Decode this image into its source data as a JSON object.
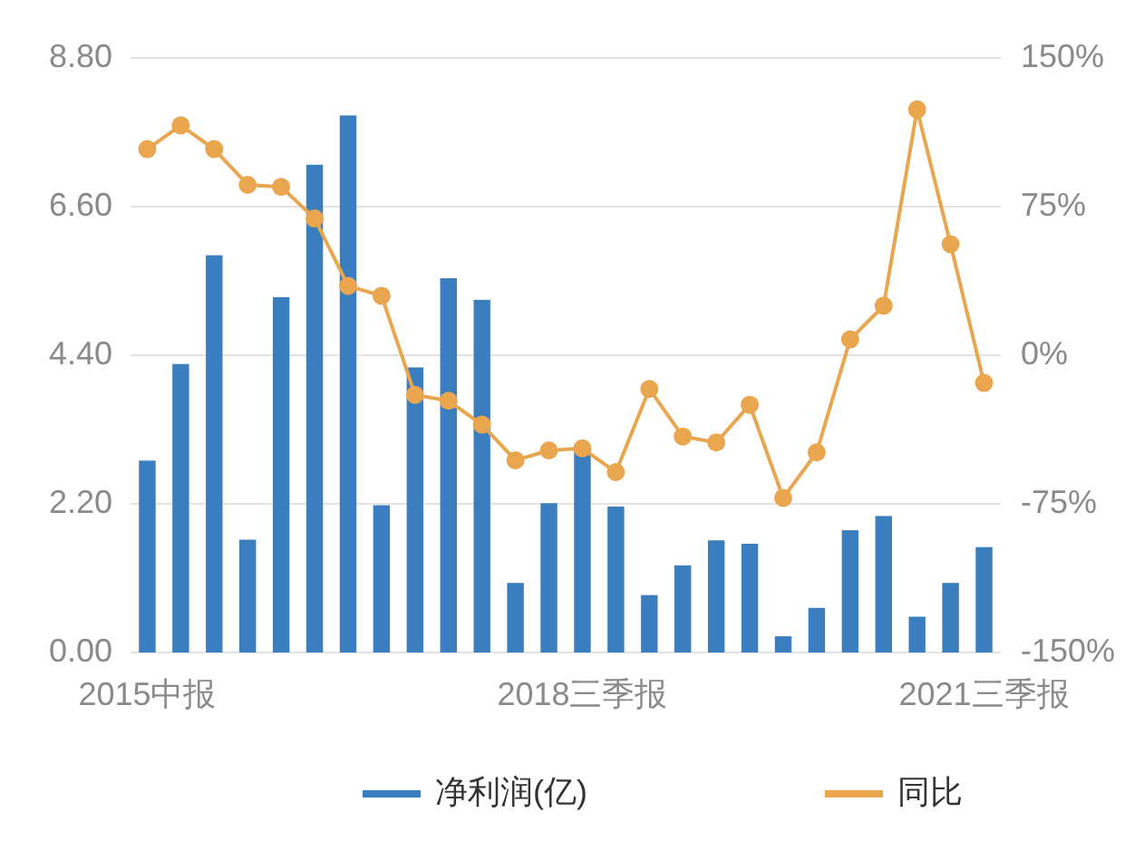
{
  "chart_data": {
    "type": "bar",
    "categories": [
      "2015中报",
      null,
      null,
      null,
      null,
      null,
      null,
      null,
      null,
      null,
      null,
      null,
      null,
      "2018三季报",
      null,
      null,
      null,
      null,
      null,
      null,
      null,
      null,
      null,
      null,
      null,
      "2021三季报"
    ],
    "series": [
      {
        "name": "净利润(亿)",
        "color": "#3a7ebf",
        "values": [
          2.84,
          4.27,
          5.88,
          1.67,
          5.26,
          7.22,
          7.95,
          2.18,
          4.22,
          5.54,
          5.22,
          1.03,
          2.21,
          2.99,
          2.16,
          0.85,
          1.29,
          1.66,
          1.61,
          0.24,
          0.66,
          1.81,
          2.02,
          0.53,
          1.03,
          1.56
        ]
      },
      {
        "name": "同比",
        "type": "line",
        "axis": "y2",
        "color": "#e9a64f",
        "marker": "circle",
        "values": [
          104,
          116,
          104,
          86,
          85,
          69,
          35,
          30,
          -20,
          -23,
          -35,
          -53,
          -48,
          -47,
          -59,
          -17,
          -41,
          -44,
          -25,
          -72,
          -49,
          8,
          25,
          124,
          56,
          -14
        ]
      }
    ],
    "ylim": [
      0,
      8.8
    ],
    "yticks": [
      {
        "value": 0,
        "label": "0.00"
      },
      {
        "value": 2.2,
        "label": "2.20"
      },
      {
        "value": 4.4,
        "label": "4.40"
      },
      {
        "value": 6.6,
        "label": "6.60"
      },
      {
        "value": 8.8,
        "label": "8.80"
      }
    ],
    "y2lim": [
      -150,
      150
    ],
    "y2ticks": [
      {
        "value": -150,
        "label": "-150%"
      },
      {
        "value": -75,
        "label": "-75%"
      },
      {
        "value": 0,
        "label": "0%"
      },
      {
        "value": 75,
        "label": "75%"
      },
      {
        "value": 150,
        "label": "150%"
      }
    ],
    "grid": "y",
    "legend": "bottom"
  }
}
